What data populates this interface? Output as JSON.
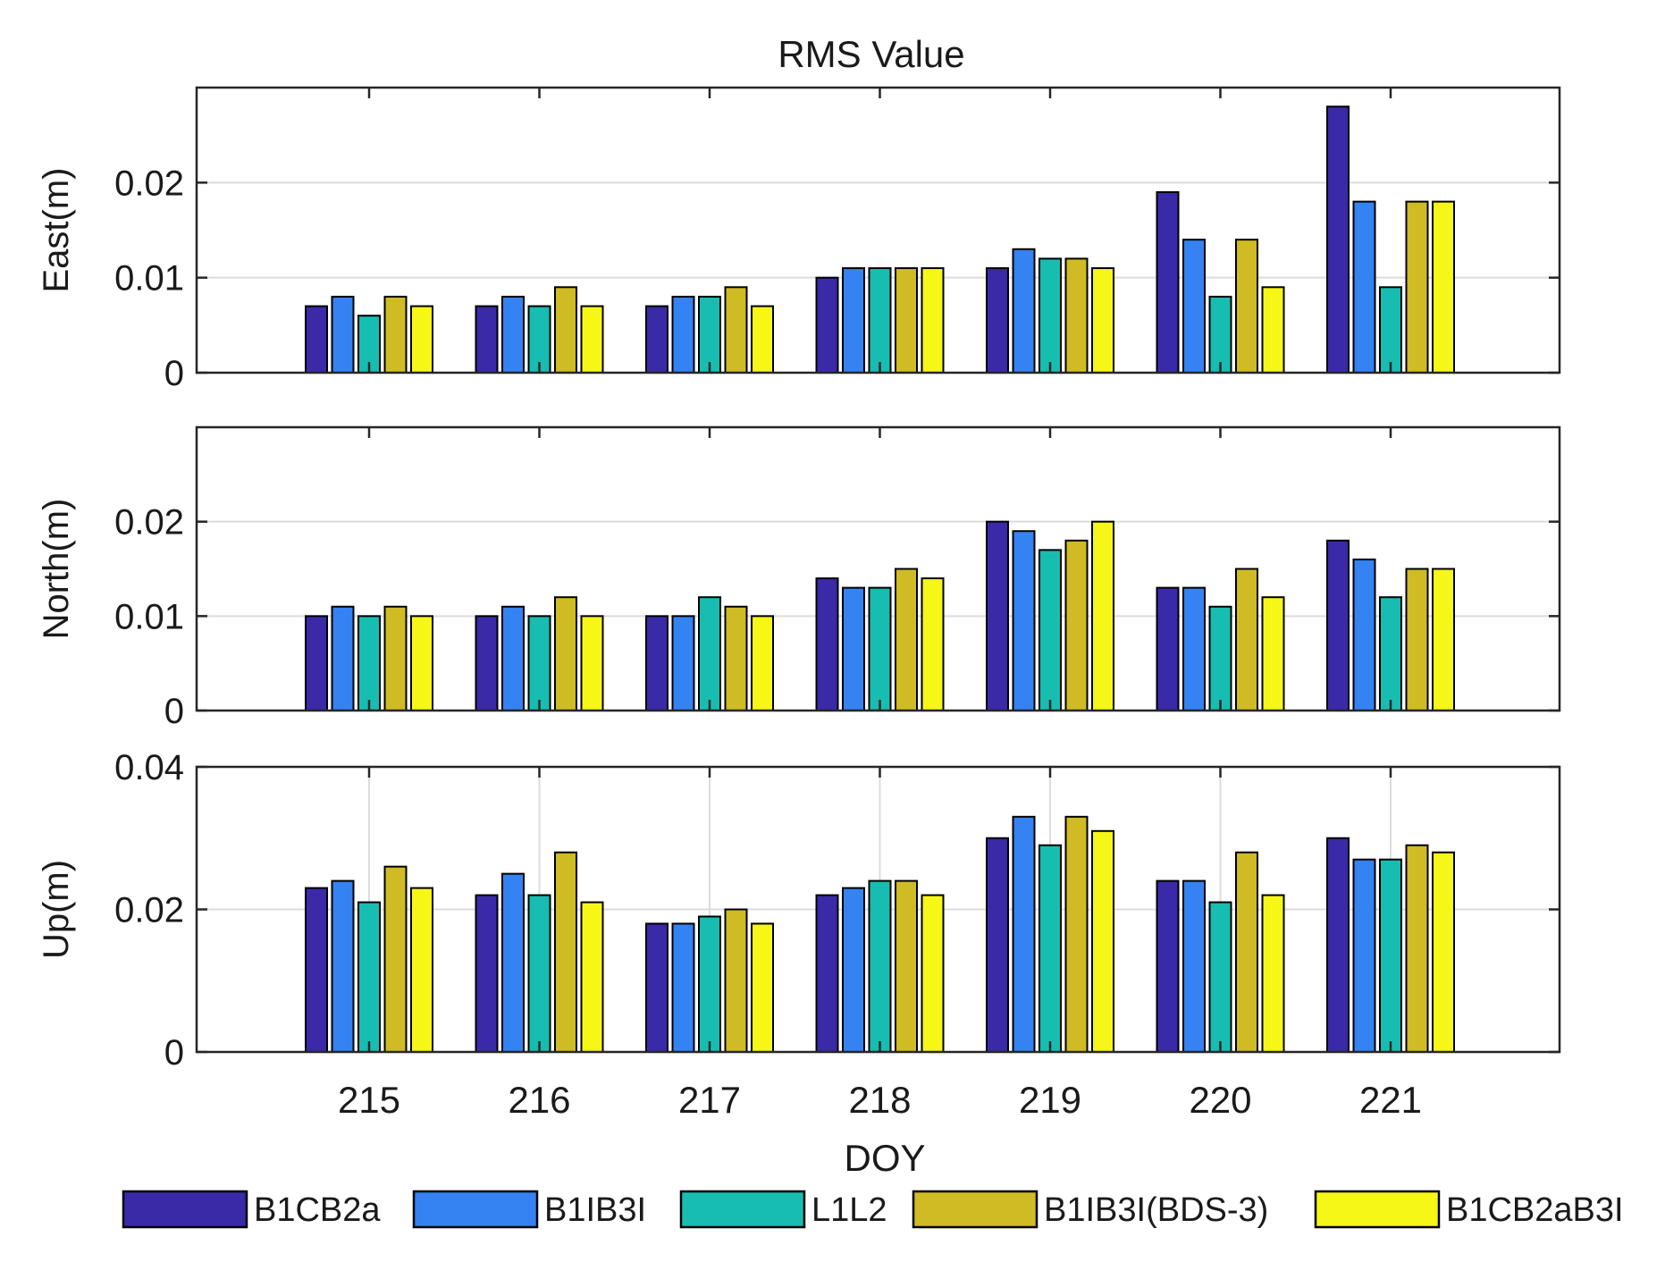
{
  "chart_data": {
    "type": "bar",
    "title": "RMS Value",
    "xlabel": "DOY",
    "categories": [
      "215",
      "216",
      "217",
      "218",
      "219",
      "220",
      "221"
    ],
    "legend": {
      "position": "bottom",
      "entries": [
        "B1CB2a",
        "B1IB3I",
        "L1L2",
        "B1IB3I(BDS-3)",
        "B1CB2aB3I"
      ]
    },
    "colors": [
      "#3a2aa8",
      "#3582f2",
      "#17bdb0",
      "#cfbb24",
      "#f6f617"
    ],
    "panels": [
      {
        "ylabel": "East(m)",
        "ylim": [
          0,
          0.03
        ],
        "yticks": [
          "0",
          "0.01",
          "0.02"
        ],
        "ytick_values": [
          0,
          0.01,
          0.02
        ],
        "grid": "horizontal",
        "series": [
          {
            "name": "B1CB2a",
            "values": [
              0.007,
              0.007,
              0.007,
              0.01,
              0.011,
              0.019,
              0.028
            ]
          },
          {
            "name": "B1IB3I",
            "values": [
              0.008,
              0.008,
              0.008,
              0.011,
              0.013,
              0.014,
              0.018
            ]
          },
          {
            "name": "L1L2",
            "values": [
              0.006,
              0.007,
              0.008,
              0.011,
              0.012,
              0.008,
              0.009
            ]
          },
          {
            "name": "B1IB3I(BDS-3)",
            "values": [
              0.008,
              0.009,
              0.009,
              0.011,
              0.012,
              0.014,
              0.018
            ]
          },
          {
            "name": "B1CB2aB3I",
            "values": [
              0.007,
              0.007,
              0.007,
              0.011,
              0.011,
              0.009,
              0.018
            ]
          }
        ]
      },
      {
        "ylabel": "North(m)",
        "ylim": [
          0,
          0.03
        ],
        "yticks": [
          "0",
          "0.01",
          "0.02"
        ],
        "ytick_values": [
          0,
          0.01,
          0.02
        ],
        "grid": "horizontal",
        "series": [
          {
            "name": "B1CB2a",
            "values": [
              0.01,
              0.01,
              0.01,
              0.014,
              0.02,
              0.013,
              0.018
            ]
          },
          {
            "name": "B1IB3I",
            "values": [
              0.011,
              0.011,
              0.01,
              0.013,
              0.019,
              0.013,
              0.016
            ]
          },
          {
            "name": "L1L2",
            "values": [
              0.01,
              0.01,
              0.012,
              0.013,
              0.017,
              0.011,
              0.012
            ]
          },
          {
            "name": "B1IB3I(BDS-3)",
            "values": [
              0.011,
              0.012,
              0.011,
              0.015,
              0.018,
              0.015,
              0.015
            ]
          },
          {
            "name": "B1CB2aB3I",
            "values": [
              0.01,
              0.01,
              0.01,
              0.014,
              0.02,
              0.012,
              0.015
            ]
          }
        ]
      },
      {
        "ylabel": "Up(m)",
        "ylim": [
          0,
          0.04
        ],
        "yticks": [
          "0",
          "0.02",
          "0.04"
        ],
        "ytick_values": [
          0,
          0.02,
          0.04
        ],
        "grid": "both",
        "series": [
          {
            "name": "B1CB2a",
            "values": [
              0.023,
              0.022,
              0.018,
              0.022,
              0.03,
              0.024,
              0.03
            ]
          },
          {
            "name": "B1IB3I",
            "values": [
              0.024,
              0.025,
              0.018,
              0.023,
              0.033,
              0.024,
              0.027
            ]
          },
          {
            "name": "L1L2",
            "values": [
              0.021,
              0.022,
              0.019,
              0.024,
              0.029,
              0.021,
              0.027
            ]
          },
          {
            "name": "B1IB3I(BDS-3)",
            "values": [
              0.026,
              0.028,
              0.02,
              0.024,
              0.033,
              0.028,
              0.029
            ]
          },
          {
            "name": "B1CB2aB3I",
            "values": [
              0.023,
              0.021,
              0.018,
              0.022,
              0.031,
              0.022,
              0.028
            ]
          }
        ]
      }
    ]
  }
}
